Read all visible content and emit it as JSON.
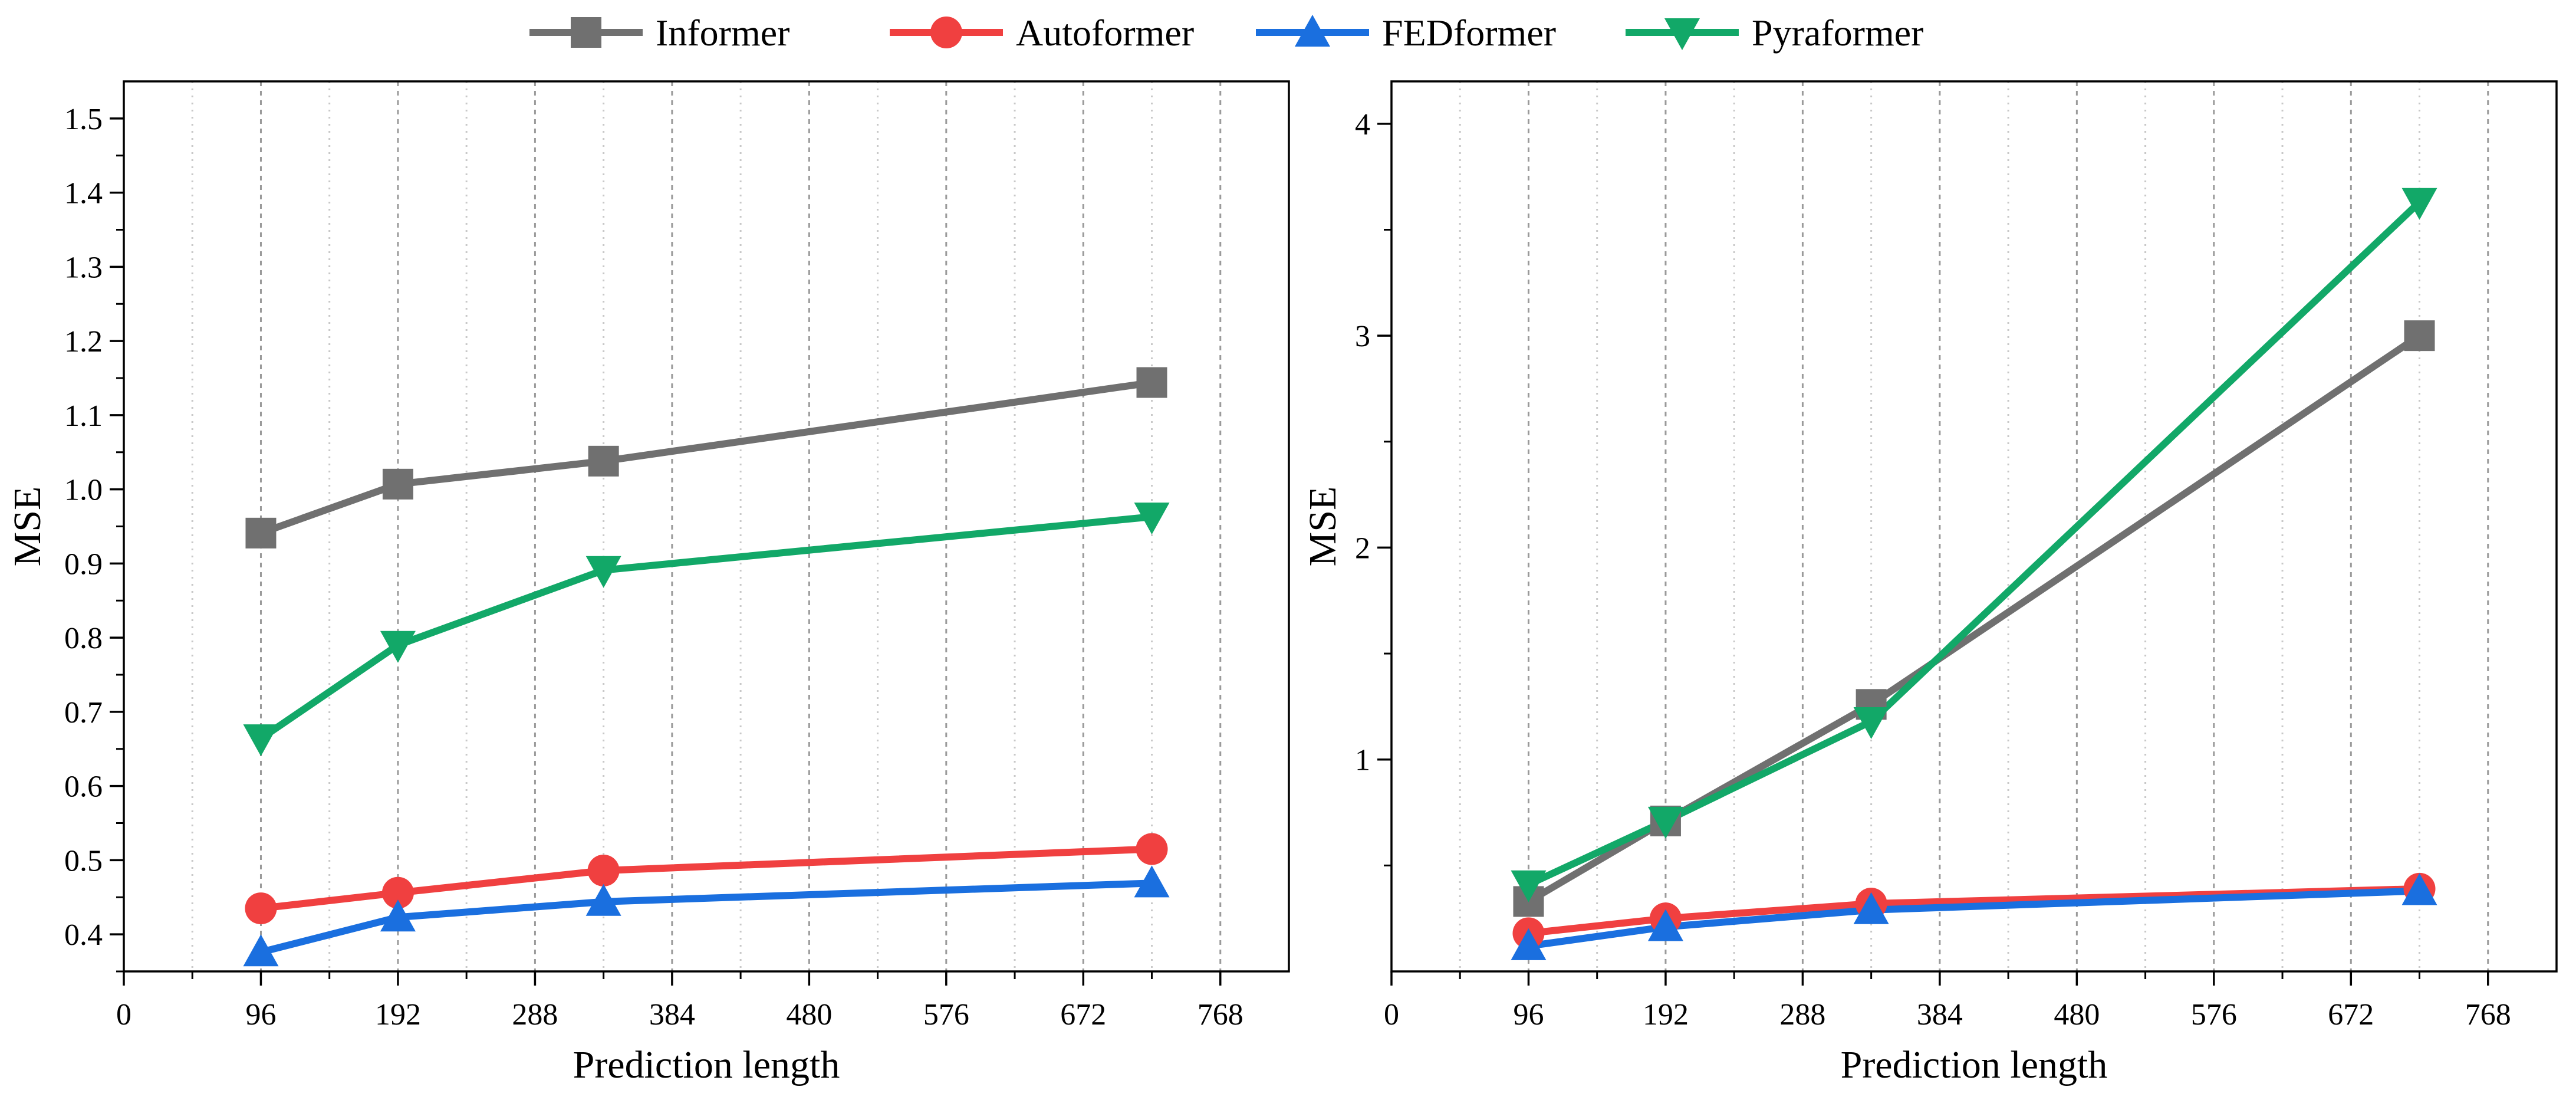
{
  "legend": [
    {
      "name": "Informer",
      "color": "#707070",
      "marker": "square"
    },
    {
      "name": "Autoformer",
      "color": "#f04040",
      "marker": "circle"
    },
    {
      "name": "FEDformer",
      "color": "#1a6fdf",
      "marker": "triangle-up"
    },
    {
      "name": "Pyraformer",
      "color": "#12a868",
      "marker": "triangle-down"
    }
  ],
  "chart_data": [
    {
      "type": "line",
      "xlabel": "Prediction length",
      "ylabel": "MSE",
      "xlim": [
        0,
        816
      ],
      "ylim": [
        0.35,
        1.55
      ],
      "xticks": [
        0,
        96,
        192,
        288,
        384,
        480,
        576,
        672,
        768
      ],
      "xtick_labels": [
        "0",
        "96",
        "192",
        "288",
        "384",
        "480",
        "576",
        "672",
        "768"
      ],
      "yticks": [
        0.4,
        0.5,
        0.6,
        0.7,
        0.8,
        0.9,
        1.0,
        1.1,
        1.2,
        1.3,
        1.4,
        1.5
      ],
      "ytick_labels": [
        "0.4",
        "0.5",
        "0.6",
        "0.7",
        "0.8",
        "0.9",
        "1.0",
        "1.1",
        "1.2",
        "1.3",
        "1.4",
        "1.5"
      ],
      "grid": "vertical dotted",
      "x": [
        96,
        192,
        336,
        720
      ],
      "series": [
        {
          "name": "Informer",
          "values": [
            0.941,
            1.007,
            1.038,
            1.144
          ]
        },
        {
          "name": "Autoformer",
          "values": [
            0.435,
            0.456,
            0.486,
            0.515
          ]
        },
        {
          "name": "FEDformer",
          "values": [
            0.376,
            0.423,
            0.444,
            0.469
          ]
        },
        {
          "name": "Pyraformer",
          "values": [
            0.664,
            0.79,
            0.891,
            0.963
          ]
        }
      ]
    },
    {
      "type": "line",
      "xlabel": "Prediction length",
      "ylabel": "MSE",
      "xlim": [
        0,
        816
      ],
      "ylim": [
        0,
        4.2
      ],
      "xticks": [
        0,
        96,
        192,
        288,
        384,
        480,
        576,
        672,
        768
      ],
      "xtick_labels": [
        "0",
        "96",
        "192",
        "288",
        "384",
        "480",
        "576",
        "672",
        "768"
      ],
      "yticks": [
        1,
        2,
        3,
        4
      ],
      "ytick_labels": [
        "1",
        "2",
        "3",
        "4"
      ],
      "grid": "vertical dotted",
      "x": [
        96,
        192,
        336,
        720
      ],
      "series": [
        {
          "name": "Informer",
          "values": [
            0.33,
            0.71,
            1.26,
            3.0
          ]
        },
        {
          "name": "Autoformer",
          "values": [
            0.18,
            0.25,
            0.32,
            0.39
          ]
        },
        {
          "name": "FEDformer",
          "values": [
            0.12,
            0.21,
            0.29,
            0.38
          ]
        },
        {
          "name": "Pyraformer",
          "values": [
            0.41,
            0.71,
            1.18,
            3.63
          ]
        }
      ]
    }
  ]
}
